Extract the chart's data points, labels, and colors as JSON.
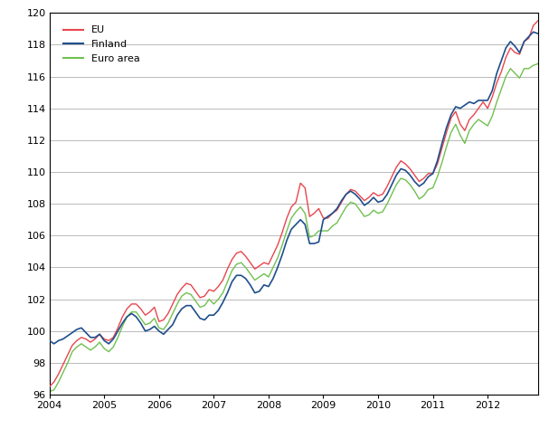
{
  "xlim_left": 2004.0,
  "xlim_right": 2012.92,
  "ylim_bottom": 96,
  "ylim_top": 120,
  "yticks": [
    96,
    98,
    100,
    102,
    104,
    106,
    108,
    110,
    112,
    114,
    116,
    118,
    120
  ],
  "xticks": [
    2004,
    2005,
    2006,
    2007,
    2008,
    2009,
    2010,
    2011,
    2012
  ],
  "colors": {
    "EU": "#e8464e",
    "Finland": "#1f4e8c",
    "Euro_area": "#70c050"
  },
  "background": "#ffffff",
  "grid_color": "#b0b0b0",
  "figsize": [
    6.07,
    4.74
  ],
  "dpi": 100,
  "eu_data": [
    96.5,
    96.8,
    97.3,
    97.9,
    98.5,
    99.1,
    99.4,
    99.6,
    99.5,
    99.3,
    99.5,
    99.8,
    99.5,
    99.4,
    99.6,
    100.2,
    100.9,
    101.4,
    101.7,
    101.7,
    101.4,
    101.0,
    101.2,
    101.5,
    100.6,
    100.7,
    101.1,
    101.7,
    102.3,
    102.7,
    103.0,
    102.9,
    102.5,
    102.1,
    102.2,
    102.6,
    102.5,
    102.8,
    103.2,
    103.9,
    104.5,
    104.9,
    105.0,
    104.7,
    104.3,
    103.9,
    104.1,
    104.3,
    104.2,
    104.8,
    105.4,
    106.2,
    107.1,
    107.8,
    108.1,
    109.3,
    109.0,
    107.2,
    107.4,
    107.7,
    107.1,
    107.1,
    107.4,
    107.6,
    108.1,
    108.6,
    108.9,
    108.8,
    108.5,
    108.2,
    108.4,
    108.7,
    108.5,
    108.6,
    109.1,
    109.7,
    110.3,
    110.7,
    110.5,
    110.2,
    109.8,
    109.4,
    109.6,
    109.9,
    109.9,
    110.5,
    111.5,
    112.5,
    113.4,
    113.8,
    113.0,
    112.6,
    113.3,
    113.6,
    114.0,
    114.4,
    114.0,
    114.7,
    115.6,
    116.3,
    117.2,
    117.8,
    117.5,
    117.4,
    118.2,
    118.4,
    119.2,
    119.5
  ],
  "finland_data": [
    99.4,
    99.2,
    99.4,
    99.5,
    99.7,
    99.9,
    100.1,
    100.2,
    99.9,
    99.6,
    99.6,
    99.8,
    99.4,
    99.2,
    99.5,
    100.0,
    100.5,
    100.9,
    101.1,
    100.9,
    100.5,
    100.0,
    100.1,
    100.3,
    100.0,
    99.8,
    100.1,
    100.4,
    101.0,
    101.4,
    101.6,
    101.6,
    101.2,
    100.8,
    100.7,
    101.0,
    101.0,
    101.3,
    101.8,
    102.4,
    103.1,
    103.5,
    103.5,
    103.3,
    102.9,
    102.4,
    102.5,
    102.9,
    102.8,
    103.3,
    104.0,
    104.8,
    105.7,
    106.4,
    106.7,
    107.0,
    106.7,
    105.5,
    105.5,
    105.6,
    107.0,
    107.2,
    107.4,
    107.7,
    108.2,
    108.6,
    108.8,
    108.6,
    108.3,
    107.9,
    108.1,
    108.4,
    108.1,
    108.2,
    108.6,
    109.2,
    109.8,
    110.2,
    110.1,
    109.8,
    109.4,
    109.1,
    109.3,
    109.7,
    109.9,
    110.7,
    111.8,
    112.8,
    113.6,
    114.1,
    114.0,
    114.2,
    114.4,
    114.3,
    114.5,
    114.5,
    114.5,
    115.1,
    116.2,
    117.0,
    117.8,
    118.2,
    117.9,
    117.5,
    118.2,
    118.5,
    118.8,
    118.7
  ],
  "euro_area_data": [
    96.2,
    96.3,
    96.8,
    97.4,
    98.0,
    98.7,
    99.0,
    99.2,
    99.0,
    98.8,
    99.0,
    99.3,
    98.9,
    98.7,
    99.0,
    99.6,
    100.3,
    100.9,
    101.2,
    101.2,
    100.8,
    100.4,
    100.5,
    100.8,
    100.2,
    100.1,
    100.5,
    101.1,
    101.7,
    102.2,
    102.4,
    102.3,
    101.9,
    101.5,
    101.6,
    102.0,
    101.7,
    102.0,
    102.4,
    103.1,
    103.8,
    104.2,
    104.3,
    104.0,
    103.6,
    103.2,
    103.4,
    103.6,
    103.4,
    104.0,
    104.6,
    105.4,
    106.3,
    107.1,
    107.5,
    107.8,
    107.4,
    105.9,
    106.0,
    106.3,
    106.3,
    106.3,
    106.6,
    106.8,
    107.3,
    107.8,
    108.1,
    108.0,
    107.6,
    107.2,
    107.3,
    107.6,
    107.4,
    107.5,
    108.0,
    108.6,
    109.2,
    109.6,
    109.5,
    109.2,
    108.8,
    108.3,
    108.5,
    108.9,
    109.0,
    109.7,
    110.6,
    111.6,
    112.5,
    113.0,
    112.3,
    111.8,
    112.6,
    113.0,
    113.3,
    113.1,
    112.9,
    113.5,
    114.4,
    115.2,
    116.0,
    116.5,
    116.2,
    115.9,
    116.5,
    116.5,
    116.7,
    116.8
  ]
}
